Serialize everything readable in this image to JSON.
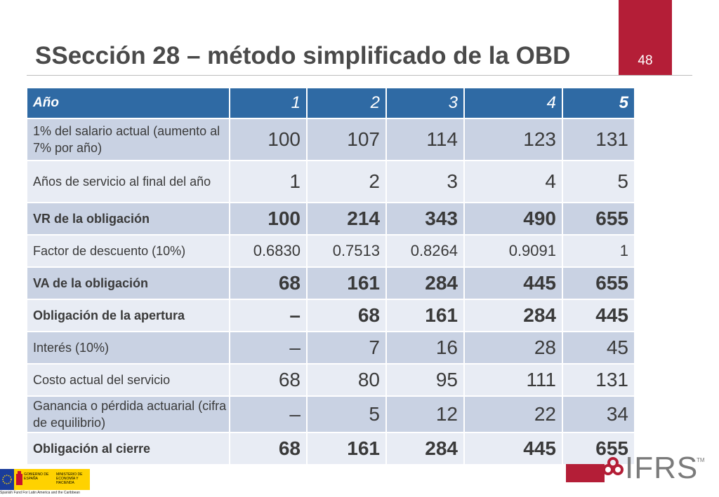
{
  "slide": {
    "title": "SSección 28 – método simplificado de la OBD",
    "page_number": "48"
  },
  "table": {
    "header": {
      "label": "Año",
      "values": [
        "1",
        "2",
        "3",
        "4",
        "5"
      ]
    },
    "rows": [
      {
        "label": "1% del salario actual (aumento al 7% por año)",
        "values": [
          "100",
          "107",
          "114",
          "123",
          "131"
        ]
      },
      {
        "label": "Años de servicio al final del año",
        "values": [
          "1",
          "2",
          "3",
          "4",
          "5"
        ]
      },
      {
        "label": "VR de la obligación",
        "values": [
          "100",
          "214",
          "343",
          "490",
          "655"
        ]
      },
      {
        "label": "Factor de descuento (10%)",
        "values": [
          "0.6830",
          "0.7513",
          "0.8264",
          "0.9091",
          "1"
        ]
      },
      {
        "label": "VA de la obligación",
        "values": [
          "68",
          "161",
          "284",
          "445",
          "655"
        ]
      },
      {
        "label": "Obligación de la apertura",
        "values": [
          "–",
          "68",
          "161",
          "284",
          "445"
        ]
      },
      {
        "label": "Interés (10%)",
        "values": [
          "–",
          "7",
          "16",
          "28",
          "45"
        ]
      },
      {
        "label": "Costo actual del servicio",
        "values": [
          "68",
          "80",
          "95",
          "111",
          "131"
        ]
      },
      {
        "label": "Ganancia o pérdida actuarial (cifra de equilibrio)",
        "values": [
          "–",
          "5",
          "12",
          "22",
          "34"
        ]
      },
      {
        "label": "Obligación al cierre",
        "values": [
          "68",
          "161",
          "284",
          "445",
          "655"
        ]
      }
    ]
  },
  "logos": {
    "ifrs": "IFRS",
    "ifrs_tm": "TM",
    "gov_line1": "GOBIERNO DE ESPAÑA",
    "gov_line2": "MINISTERIO DE ECONOMÍA Y HACIENDA",
    "fund": "Spanish Fund For Latin America and the Caribbean"
  },
  "colors": {
    "accent": "#b41e37",
    "header_blue": "#2f6aa4",
    "row_dark": "#c9d2e3",
    "row_light": "#e8ecf4"
  }
}
